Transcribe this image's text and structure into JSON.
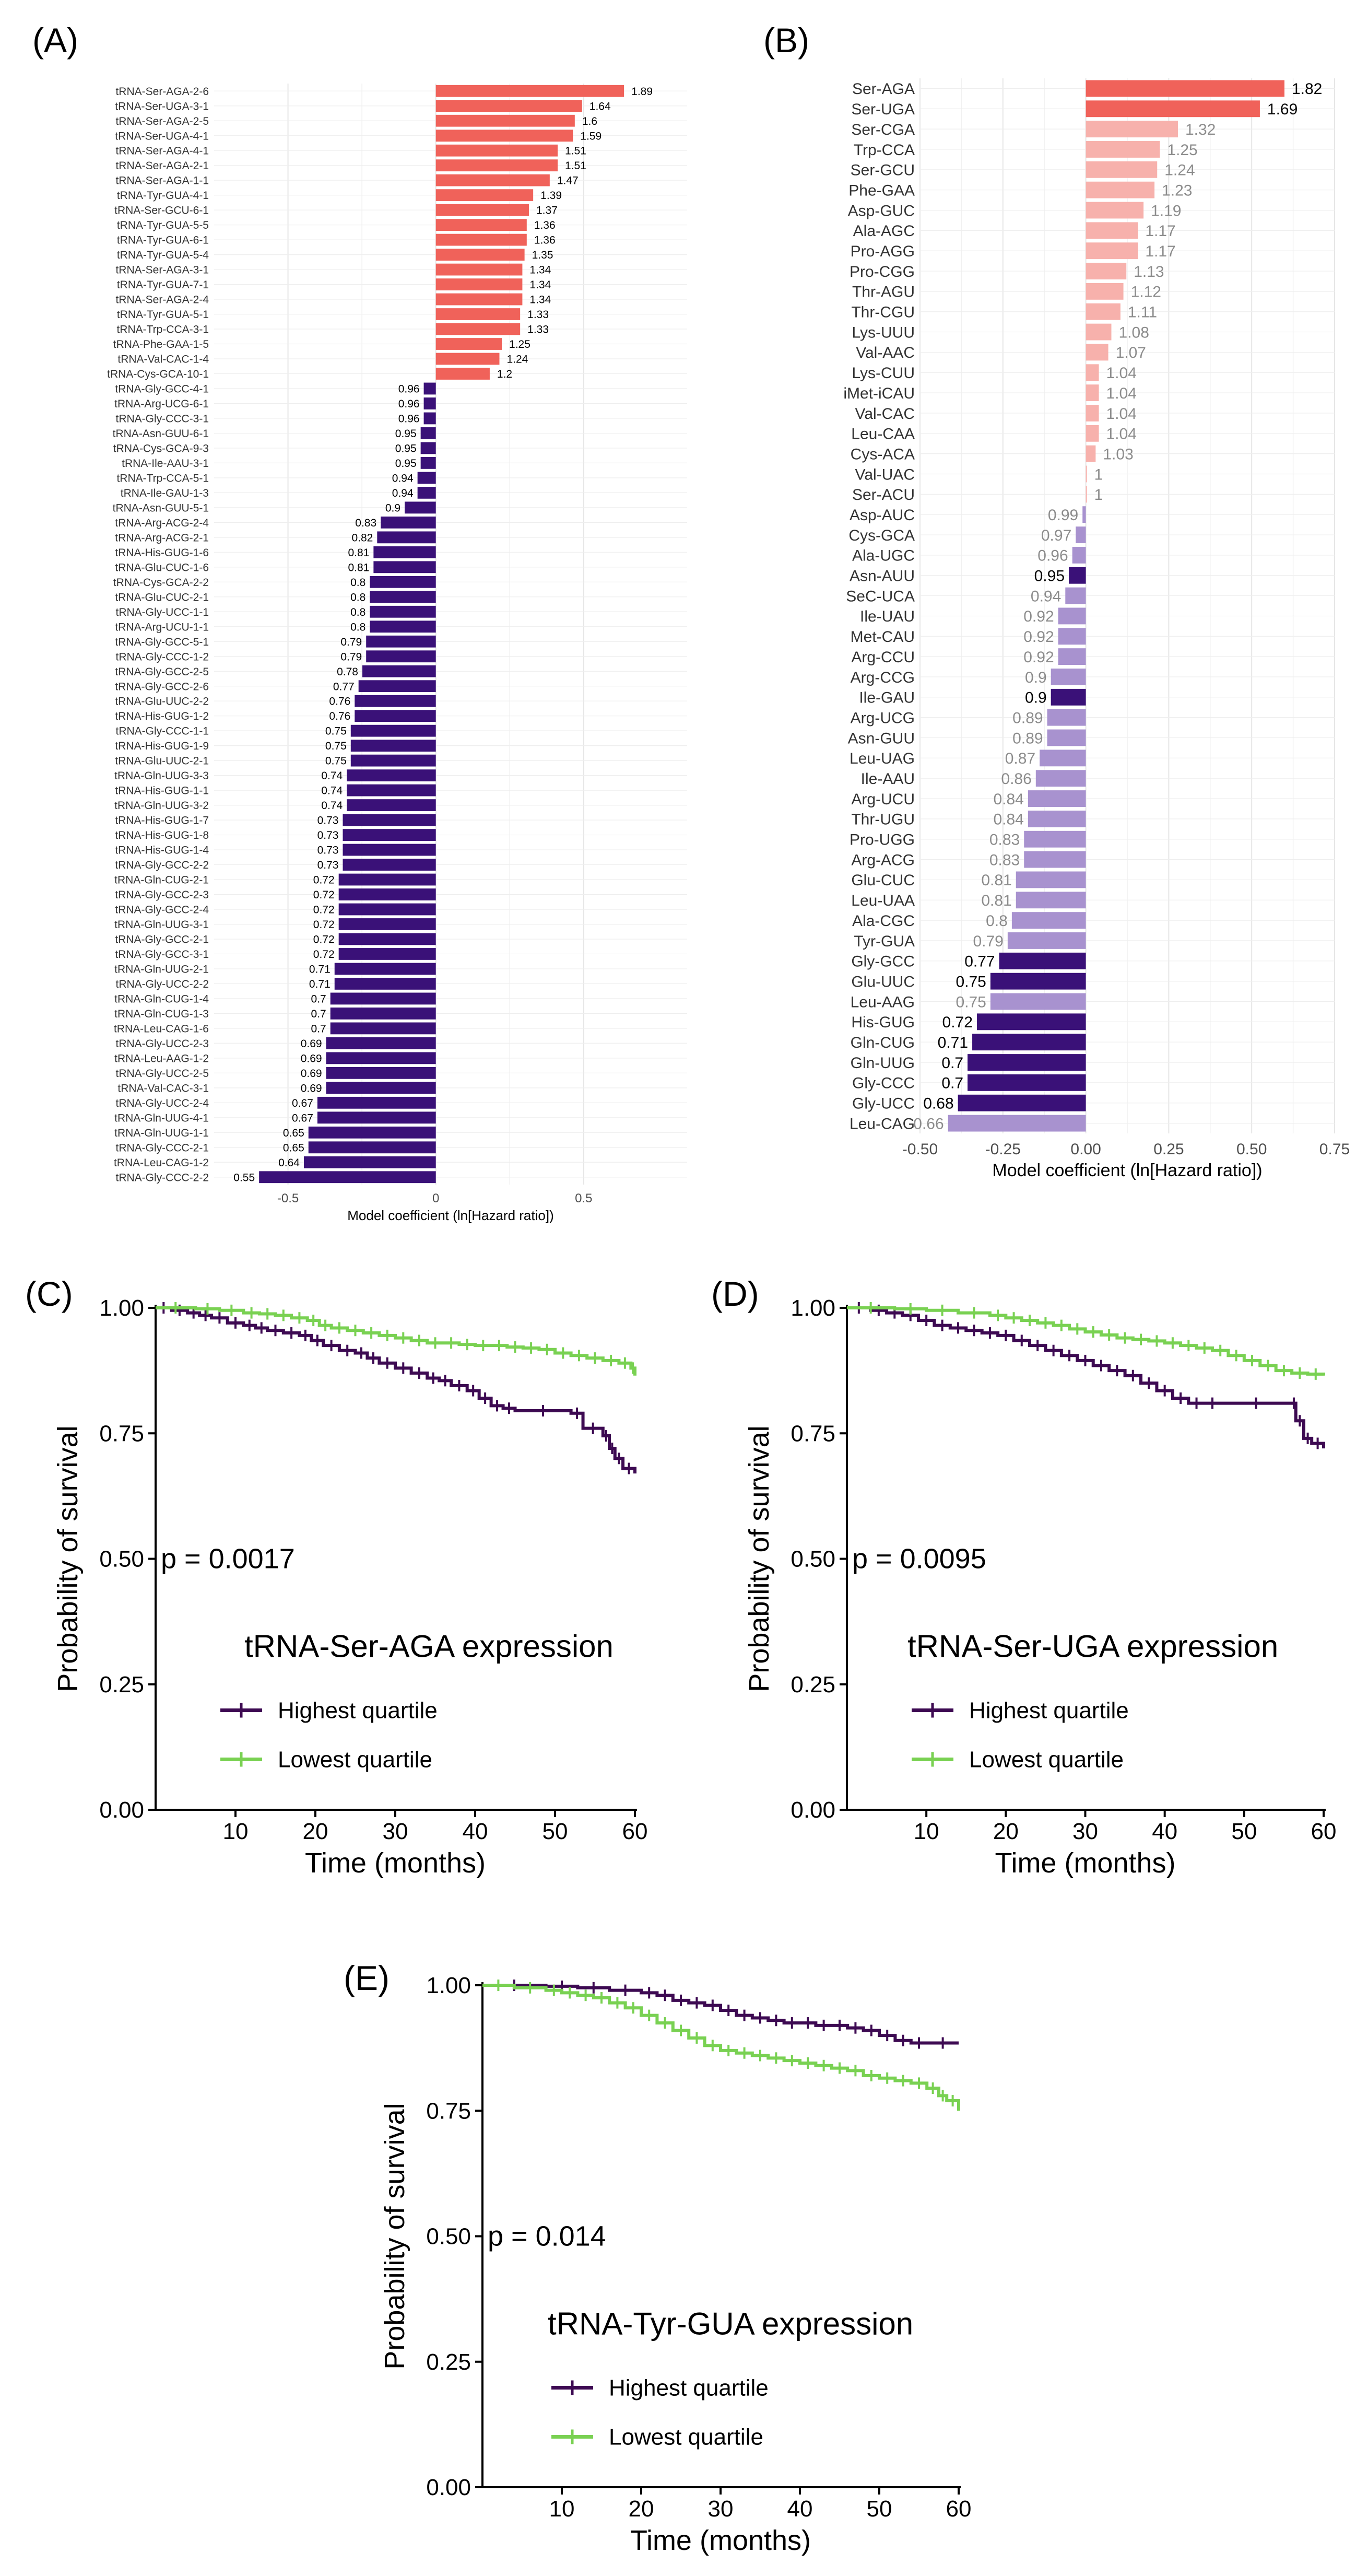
{
  "figure": {
    "panel_labels": [
      "(A)",
      "(B)",
      "(C)",
      "(D)",
      "(E)"
    ]
  },
  "chart_data": [
    {
      "panel": "(A)",
      "type": "bar",
      "orientation": "horizontal",
      "xlabel": "Model coefficient (ln[Hazard ratio])",
      "xlim": [
        -0.75,
        0.85
      ],
      "x_ticks": [
        -0.5,
        0,
        0.5
      ],
      "x_tick_labels": [
        "-0.5",
        "0",
        "0.5"
      ],
      "grid": true,
      "colors": {
        "positive": "#f0625a",
        "negative": "#3a1178"
      },
      "categories": [
        "tRNA-Ser-AGA-2-6",
        "tRNA-Ser-UGA-3-1",
        "tRNA-Ser-AGA-2-5",
        "tRNA-Ser-UGA-4-1",
        "tRNA-Ser-AGA-4-1",
        "tRNA-Ser-AGA-2-1",
        "tRNA-Ser-AGA-1-1",
        "tRNA-Tyr-GUA-4-1",
        "tRNA-Ser-GCU-6-1",
        "tRNA-Tyr-GUA-5-5",
        "tRNA-Tyr-GUA-6-1",
        "tRNA-Tyr-GUA-5-4",
        "tRNA-Ser-AGA-3-1",
        "tRNA-Tyr-GUA-7-1",
        "tRNA-Ser-AGA-2-4",
        "tRNA-Tyr-GUA-5-1",
        "tRNA-Trp-CCA-3-1",
        "tRNA-Phe-GAA-1-5",
        "tRNA-Val-CAC-1-4",
        "tRNA-Cys-GCA-10-1",
        "tRNA-Gly-GCC-4-1",
        "tRNA-Arg-UCG-6-1",
        "tRNA-Gly-CCC-3-1",
        "tRNA-Asn-GUU-6-1",
        "tRNA-Cys-GCA-9-3",
        "tRNA-Ile-AAU-3-1",
        "tRNA-Trp-CCA-5-1",
        "tRNA-Ile-GAU-1-3",
        "tRNA-Asn-GUU-5-1",
        "tRNA-Arg-ACG-2-4",
        "tRNA-Arg-ACG-2-1",
        "tRNA-His-GUG-1-6",
        "tRNA-Glu-CUC-1-6",
        "tRNA-Cys-GCA-2-2",
        "tRNA-Glu-CUC-2-1",
        "tRNA-Gly-UCC-1-1",
        "tRNA-Arg-UCU-1-1",
        "tRNA-Gly-GCC-5-1",
        "tRNA-Gly-CCC-1-2",
        "tRNA-Gly-GCC-2-5",
        "tRNA-Gly-GCC-2-6",
        "tRNA-Glu-UUC-2-2",
        "tRNA-His-GUG-1-2",
        "tRNA-Gly-CCC-1-1",
        "tRNA-His-GUG-1-9",
        "tRNA-Glu-UUC-2-1",
        "tRNA-Gln-UUG-3-3",
        "tRNA-His-GUG-1-1",
        "tRNA-Gln-UUG-3-2",
        "tRNA-His-GUG-1-7",
        "tRNA-His-GUG-1-8",
        "tRNA-His-GUG-1-4",
        "tRNA-Gly-GCC-2-2",
        "tRNA-Gln-CUG-2-1",
        "tRNA-Gly-GCC-2-3",
        "tRNA-Gly-GCC-2-4",
        "tRNA-Gln-UUG-3-1",
        "tRNA-Gly-GCC-2-1",
        "tRNA-Gly-GCC-3-1",
        "tRNA-Gln-UUG-2-1",
        "tRNA-Gly-UCC-2-2",
        "tRNA-Gln-CUG-1-4",
        "tRNA-Gln-CUG-1-3",
        "tRNA-Leu-CAG-1-6",
        "tRNA-Gly-UCC-2-3",
        "tRNA-Leu-AAG-1-2",
        "tRNA-Gly-UCC-2-5",
        "tRNA-Val-CAC-3-1",
        "tRNA-Gly-UCC-2-4",
        "tRNA-Gln-UUG-4-1",
        "tRNA-Gln-UUG-1-1",
        "tRNA-Gly-CCC-2-1",
        "tRNA-Leu-CAG-1-2",
        "tRNA-Gly-CCC-2-2"
      ],
      "hazard_ratios": [
        1.89,
        1.64,
        1.6,
        1.59,
        1.51,
        1.51,
        1.47,
        1.39,
        1.37,
        1.36,
        1.36,
        1.35,
        1.34,
        1.34,
        1.34,
        1.33,
        1.33,
        1.25,
        1.24,
        1.2,
        0.96,
        0.96,
        0.96,
        0.95,
        0.95,
        0.95,
        0.94,
        0.94,
        0.9,
        0.83,
        0.82,
        0.81,
        0.81,
        0.8,
        0.8,
        0.8,
        0.8,
        0.79,
        0.79,
        0.78,
        0.77,
        0.76,
        0.76,
        0.75,
        0.75,
        0.75,
        0.74,
        0.74,
        0.74,
        0.73,
        0.73,
        0.73,
        0.73,
        0.72,
        0.72,
        0.72,
        0.72,
        0.72,
        0.72,
        0.71,
        0.71,
        0.7,
        0.7,
        0.7,
        0.69,
        0.69,
        0.69,
        0.69,
        0.67,
        0.67,
        0.65,
        0.65,
        0.64,
        0.55
      ],
      "hazard_ratio_labels": [
        "1.89",
        "1.64",
        "1.6",
        "1.59",
        "1.51",
        "1.51",
        "1.47",
        "1.39",
        "1.37",
        "1.36",
        "1.36",
        "1.35",
        "1.34",
        "1.34",
        "1.34",
        "1.33",
        "1.33",
        "1.25",
        "1.24",
        "1.2",
        "0.96",
        "0.96",
        "0.96",
        "0.95",
        "0.95",
        "0.95",
        "0.94",
        "0.94",
        "0.9",
        "0.83",
        "0.82",
        "0.81",
        "0.81",
        "0.8",
        "0.8",
        "0.8",
        "0.8",
        "0.79",
        "0.79",
        "0.78",
        "0.77",
        "0.76",
        "0.76",
        "0.75",
        "0.75",
        "0.75",
        "0.74",
        "0.74",
        "0.74",
        "0.73",
        "0.73",
        "0.73",
        "0.73",
        "0.72",
        "0.72",
        "0.72",
        "0.72",
        "0.72",
        "0.72",
        "0.71",
        "0.71",
        "0.7",
        "0.7",
        "0.7",
        "0.69",
        "0.69",
        "0.69",
        "0.69",
        "0.67",
        "0.67",
        "0.65",
        "0.65",
        "0.64",
        "0.55"
      ]
    },
    {
      "panel": "(B)",
      "type": "bar",
      "orientation": "horizontal",
      "xlabel": "Model coefficient (ln[Hazard ratio])",
      "xlim": [
        -0.5,
        0.75
      ],
      "x_ticks": [
        -0.5,
        -0.25,
        0,
        0.25,
        0.5,
        0.75
      ],
      "x_tick_labels": [
        "-0.50",
        "-0.25",
        "0.00",
        "0.25",
        "0.50",
        "0.75"
      ],
      "grid": true,
      "colors": {
        "positive": "#f0625a",
        "positive_light": "#f7b1ac",
        "negative": "#3a1178",
        "negative_light": "#a892cf"
      },
      "categories": [
        "Ser-AGA",
        "Ser-UGA",
        "Ser-CGA",
        "Trp-CCA",
        "Ser-GCU",
        "Phe-GAA",
        "Asp-GUC",
        "Ala-AGC",
        "Pro-AGG",
        "Pro-CGG",
        "Thr-AGU",
        "Thr-CGU",
        "Lys-UUU",
        "Val-AAC",
        "Lys-CUU",
        "iMet-iCAU",
        "Val-CAC",
        "Leu-CAA",
        "Cys-ACA",
        "Val-UAC",
        "Ser-ACU",
        "Asp-AUC",
        "Cys-GCA",
        "Ala-UGC",
        "Asn-AUU",
        "SeC-UCA",
        "Ile-UAU",
        "Met-CAU",
        "Arg-CCU",
        "Arg-CCG",
        "Ile-GAU",
        "Arg-UCG",
        "Asn-GUU",
        "Leu-UAG",
        "Ile-AAU",
        "Arg-UCU",
        "Thr-UGU",
        "Pro-UGG",
        "Arg-ACG",
        "Glu-CUC",
        "Leu-UAA",
        "Ala-CGC",
        "Tyr-GUA",
        "Gly-GCC",
        "Glu-UUC",
        "Leu-AAG",
        "His-GUG",
        "Gln-CUG",
        "Gln-UUG",
        "Gly-CCC",
        "Gly-UCC",
        "Leu-CAG"
      ],
      "hazard_ratios": [
        1.82,
        1.69,
        1.32,
        1.25,
        1.24,
        1.23,
        1.19,
        1.17,
        1.17,
        1.13,
        1.12,
        1.11,
        1.08,
        1.07,
        1.04,
        1.04,
        1.04,
        1.04,
        1.03,
        1,
        1,
        0.99,
        0.97,
        0.96,
        0.95,
        0.94,
        0.92,
        0.92,
        0.92,
        0.9,
        0.9,
        0.89,
        0.89,
        0.87,
        0.86,
        0.84,
        0.84,
        0.83,
        0.83,
        0.81,
        0.81,
        0.8,
        0.79,
        0.77,
        0.75,
        0.75,
        0.72,
        0.71,
        0.7,
        0.7,
        0.68,
        0.66
      ],
      "hazard_ratio_labels": [
        "1.82",
        "1.69",
        "1.32",
        "1.25",
        "1.24",
        "1.23",
        "1.19",
        "1.17",
        "1.17",
        "1.13",
        "1.12",
        "1.11",
        "1.08",
        "1.07",
        "1.04",
        "1.04",
        "1.04",
        "1.04",
        "1.03",
        "1",
        "1",
        "0.99",
        "0.97",
        "0.96",
        "0.95",
        "0.94",
        "0.92",
        "0.92",
        "0.92",
        "0.9",
        "0.9",
        "0.89",
        "0.89",
        "0.87",
        "0.86",
        "0.84",
        "0.84",
        "0.83",
        "0.83",
        "0.81",
        "0.81",
        "0.8",
        "0.79",
        "0.77",
        "0.75",
        "0.75",
        "0.72",
        "0.71",
        "0.7",
        "0.7",
        "0.68",
        "0.66"
      ],
      "significant": [
        true,
        true,
        false,
        false,
        false,
        false,
        false,
        false,
        false,
        false,
        false,
        false,
        false,
        false,
        false,
        false,
        false,
        false,
        false,
        false,
        false,
        false,
        false,
        false,
        true,
        false,
        false,
        false,
        false,
        false,
        true,
        false,
        false,
        false,
        false,
        false,
        false,
        false,
        false,
        false,
        false,
        false,
        false,
        true,
        true,
        false,
        true,
        true,
        true,
        true,
        true,
        false
      ]
    },
    {
      "panel": "(C)",
      "type": "line",
      "subtype": "kaplan-meier",
      "title": "tRNA-Ser-AGA expression",
      "xlabel": "Time (months)",
      "ylabel": "Probability of survival",
      "xlim": [
        0,
        60
      ],
      "ylim": [
        0,
        1
      ],
      "x_ticks": [
        10,
        20,
        30,
        40,
        50,
        60
      ],
      "x_tick_labels": [
        "10",
        "20",
        "30",
        "40",
        "50",
        "60"
      ],
      "y_ticks": [
        0,
        0.25,
        0.5,
        0.75,
        1
      ],
      "y_tick_labels": [
        "0.00",
        "0.25",
        "0.50",
        "0.75",
        "1.00"
      ],
      "annotation": "p = 0.0017",
      "legend_position": "center-left",
      "series": [
        {
          "name": "Highest quartile",
          "color": "#3d0a52",
          "x": [
            0,
            2,
            4,
            5.5,
            7,
            9,
            11,
            12.5,
            14,
            16,
            18,
            19.5,
            21,
            23,
            25,
            26.5,
            28,
            30,
            32,
            34,
            35.5,
            37,
            39,
            40.5,
            42,
            43.5,
            45,
            52,
            53.5,
            56,
            56.8,
            57.5,
            58.5,
            60
          ],
          "y": [
            1,
            0.995,
            0.99,
            0.985,
            0.98,
            0.97,
            0.965,
            0.96,
            0.955,
            0.95,
            0.945,
            0.935,
            0.925,
            0.915,
            0.91,
            0.9,
            0.89,
            0.88,
            0.87,
            0.86,
            0.855,
            0.845,
            0.835,
            0.82,
            0.805,
            0.8,
            0.795,
            0.79,
            0.76,
            0.745,
            0.72,
            0.7,
            0.68,
            0.67
          ]
        },
        {
          "name": "Lowest quartile",
          "color": "#79d152",
          "x": [
            0,
            5,
            8,
            11,
            13,
            15,
            17,
            19,
            20.5,
            22,
            24,
            26,
            28,
            30,
            32,
            34,
            36,
            38,
            40,
            42,
            44,
            46,
            48,
            50,
            52,
            54,
            56,
            58,
            59.5,
            60
          ],
          "y": [
            1,
            0.998,
            0.995,
            0.99,
            0.988,
            0.985,
            0.98,
            0.975,
            0.965,
            0.96,
            0.955,
            0.95,
            0.945,
            0.94,
            0.935,
            0.93,
            0.93,
            0.927,
            0.925,
            0.925,
            0.922,
            0.92,
            0.917,
            0.91,
            0.905,
            0.9,
            0.895,
            0.89,
            0.88,
            0.865
          ]
        }
      ]
    },
    {
      "panel": "(D)",
      "type": "line",
      "subtype": "kaplan-meier",
      "title": "tRNA-Ser-UGA expression",
      "xlabel": "Time (months)",
      "ylabel": "Probability of survival",
      "xlim": [
        0,
        60
      ],
      "ylim": [
        0,
        1
      ],
      "x_ticks": [
        10,
        20,
        30,
        40,
        50,
        60
      ],
      "x_tick_labels": [
        "10",
        "20",
        "30",
        "40",
        "50",
        "60"
      ],
      "y_ticks": [
        0,
        0.25,
        0.5,
        0.75,
        1
      ],
      "y_tick_labels": [
        "0.00",
        "0.25",
        "0.50",
        "0.75",
        "1.00"
      ],
      "annotation": "p = 0.0095",
      "legend_position": "center-left",
      "series": [
        {
          "name": "Highest quartile",
          "color": "#3d0a52",
          "x": [
            0,
            3,
            5,
            7,
            9,
            11,
            13,
            15,
            17,
            19,
            21,
            23,
            25,
            27,
            29,
            31,
            33,
            35,
            37,
            39,
            41,
            43,
            45,
            47,
            56,
            56.5,
            57.5,
            58.5,
            60
          ],
          "y": [
            1,
            0.995,
            0.99,
            0.985,
            0.975,
            0.965,
            0.96,
            0.955,
            0.95,
            0.945,
            0.935,
            0.925,
            0.915,
            0.905,
            0.895,
            0.885,
            0.875,
            0.865,
            0.85,
            0.835,
            0.82,
            0.81,
            0.81,
            0.81,
            0.81,
            0.775,
            0.74,
            0.73,
            0.72
          ]
        },
        {
          "name": "Lowest quartile",
          "color": "#79d152",
          "x": [
            0,
            6,
            10,
            14,
            18,
            20,
            22,
            24,
            26,
            28,
            30,
            32,
            34,
            36,
            38,
            40,
            42,
            44,
            46,
            48,
            50,
            52,
            54,
            56,
            58,
            60
          ],
          "y": [
            1,
            0.998,
            0.995,
            0.99,
            0.985,
            0.98,
            0.975,
            0.97,
            0.965,
            0.958,
            0.952,
            0.946,
            0.94,
            0.937,
            0.934,
            0.93,
            0.925,
            0.92,
            0.915,
            0.905,
            0.895,
            0.885,
            0.875,
            0.87,
            0.868,
            0.865
          ]
        }
      ]
    },
    {
      "panel": "(E)",
      "type": "line",
      "subtype": "kaplan-meier",
      "title": "tRNA-Tyr-GUA expression",
      "xlabel": "Time (months)",
      "ylabel": "Probability of survival",
      "xlim": [
        0,
        60
      ],
      "ylim": [
        0,
        1
      ],
      "x_ticks": [
        10,
        20,
        30,
        40,
        50,
        60
      ],
      "x_tick_labels": [
        "10",
        "20",
        "30",
        "40",
        "50",
        "60"
      ],
      "y_ticks": [
        0,
        0.25,
        0.5,
        0.75,
        1
      ],
      "y_tick_labels": [
        "0.00",
        "0.25",
        "0.50",
        "0.75",
        "1.00"
      ],
      "annotation": "p = 0.014",
      "legend_position": "center-left",
      "series": [
        {
          "name": "Highest quartile",
          "color": "#3d0a52",
          "x": [
            0,
            8,
            12,
            16,
            20,
            22,
            24,
            26,
            28,
            30,
            32,
            34,
            36,
            38,
            40,
            42,
            44,
            46,
            48,
            50,
            52,
            54,
            56,
            60
          ],
          "y": [
            1,
            0.998,
            0.995,
            0.99,
            0.985,
            0.98,
            0.97,
            0.965,
            0.96,
            0.95,
            0.94,
            0.935,
            0.93,
            0.925,
            0.925,
            0.92,
            0.92,
            0.915,
            0.91,
            0.9,
            0.89,
            0.885,
            0.885,
            0.885
          ]
        },
        {
          "name": "Lowest quartile",
          "color": "#79d152",
          "x": [
            0,
            4,
            8,
            10,
            12,
            14,
            16,
            18,
            20,
            22,
            24,
            26,
            28,
            30,
            32,
            34,
            36,
            38,
            40,
            42,
            44,
            46,
            48,
            50,
            52,
            54,
            56,
            57.5,
            58.5,
            60
          ],
          "y": [
            1,
            0.995,
            0.99,
            0.985,
            0.98,
            0.975,
            0.965,
            0.955,
            0.94,
            0.925,
            0.91,
            0.895,
            0.88,
            0.87,
            0.865,
            0.86,
            0.855,
            0.85,
            0.845,
            0.84,
            0.835,
            0.83,
            0.82,
            0.815,
            0.81,
            0.805,
            0.795,
            0.78,
            0.77,
            0.75
          ]
        }
      ]
    }
  ]
}
